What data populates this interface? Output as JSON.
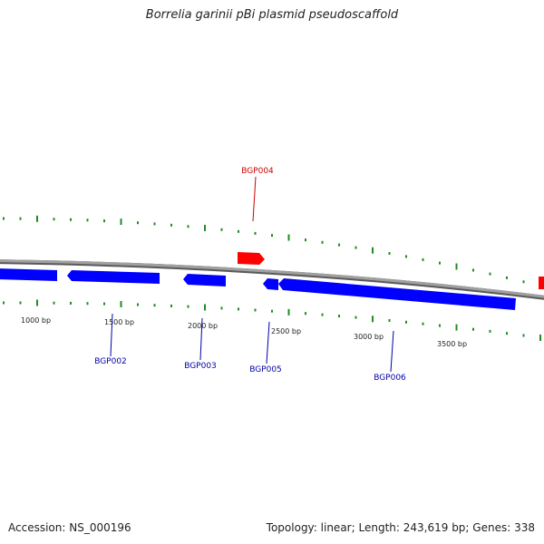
{
  "title": "Borrelia garinii pBi plasmid pseudoscaffold",
  "footer": {
    "accession_label": "Accession:",
    "accession": "NS_000196",
    "topology_label": "Topology:",
    "topology": "linear",
    "length_label": "Length:",
    "length": "243,619 bp",
    "genes_label": "Genes:",
    "genes": "338"
  },
  "colors": {
    "backbone": "#8a8a8a",
    "forward": "#ff0000",
    "reverse": "#0000ff",
    "ticks": "#228b22",
    "forward_label": "#cc0000",
    "reverse_label": "#0000aa"
  },
  "scale": {
    "bp_labels": [
      "1000 bp",
      "1500 bp",
      "2000 bp",
      "2500 bp",
      "3000 bp",
      "3500 bp"
    ]
  },
  "genes": [
    {
      "id": "BGP002",
      "strand": "reverse"
    },
    {
      "id": "BGP003",
      "strand": "reverse"
    },
    {
      "id": "BGP004",
      "strand": "forward"
    },
    {
      "id": "BGP005",
      "strand": "reverse"
    },
    {
      "id": "BGP006",
      "strand": "reverse"
    }
  ]
}
